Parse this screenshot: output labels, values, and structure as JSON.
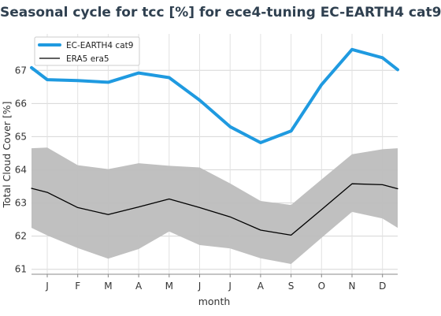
{
  "chart_data": {
    "type": "line",
    "title": "Seasonal cycle for tcc [%] for ece4-tuning EC-EARTH4 cat9",
    "xlabel": "month",
    "ylabel": "Total Cloud Cover [%]",
    "categories": [
      "J",
      "F",
      "M",
      "A",
      "M",
      "J",
      "J",
      "A",
      "S",
      "O",
      "N",
      "D"
    ],
    "ylim": [
      60.85,
      68.1
    ],
    "yticks": [
      61,
      62,
      63,
      64,
      65,
      66,
      67
    ],
    "grid": true,
    "legend_position": "top-left",
    "series": [
      {
        "name": "EC-EARTH4 cat9",
        "color": "#1f9ae0",
        "values": [
          66.72,
          66.69,
          66.64,
          66.92,
          66.78,
          66.1,
          65.3,
          64.82,
          65.17,
          66.57,
          67.63,
          67.38
        ],
        "wrap_start": 67.08,
        "wrap_end": 67.02
      },
      {
        "name": "ERA5 era5",
        "color": "#000000",
        "values": [
          63.32,
          62.86,
          62.65,
          62.88,
          63.12,
          62.86,
          62.58,
          62.18,
          62.03,
          62.8,
          63.58,
          63.55
        ],
        "wrap_start": 63.44,
        "wrap_end": 63.43
      }
    ],
    "band": {
      "color": "#bdbdbd",
      "upper": [
        64.67,
        64.14,
        64.02,
        64.2,
        64.12,
        64.07,
        63.59,
        63.06,
        62.94,
        63.71,
        64.47,
        64.62
      ],
      "lower": [
        62.02,
        61.64,
        61.32,
        61.61,
        62.14,
        61.73,
        61.63,
        61.33,
        61.16,
        61.95,
        62.73,
        62.53
      ],
      "upper_wrap_start": 64.65,
      "upper_wrap_end": 64.65,
      "lower_wrap_start": 62.25,
      "lower_wrap_end": 62.25
    }
  }
}
